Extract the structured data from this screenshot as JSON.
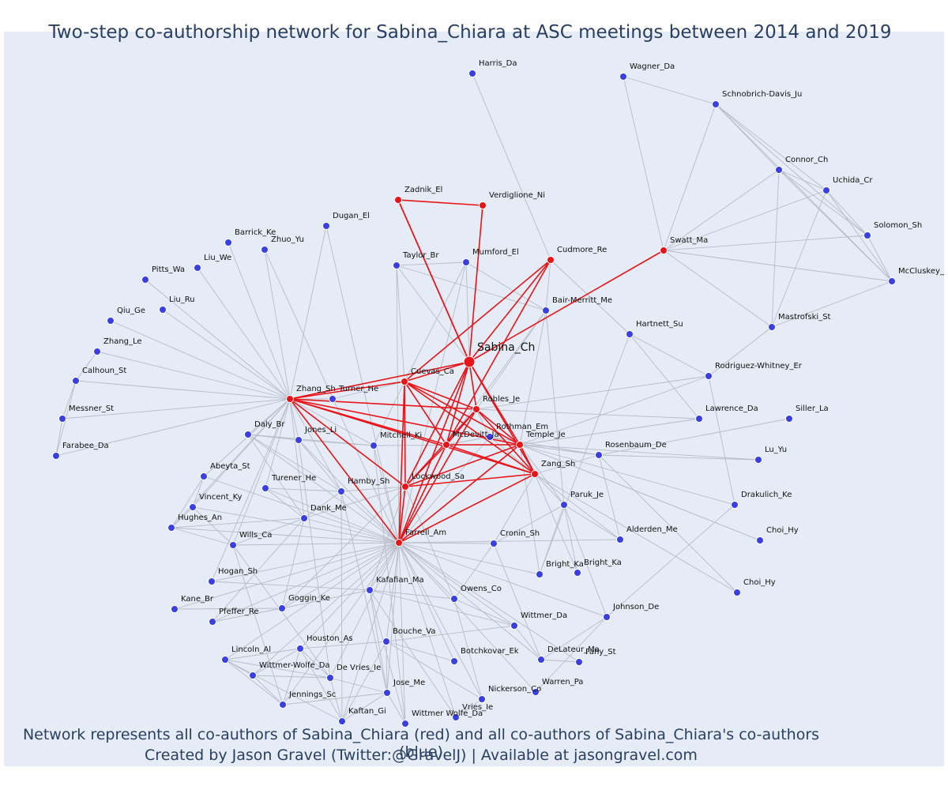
{
  "title": "Two-step co-authorship network for Sabina_Chiara at ASC meetings between 2014 and 2019",
  "footer_line1": "Network represents all co-authors of Sabina_Chiara (red) and all co-authors of Sabina_Chiara's co-authors (blue)",
  "footer_line2": "Created by Jason Gravel (Twitter:@GravelJ) | Available at jasongravel.com",
  "colors": {
    "background": "#e5ecf6",
    "direct": "#e8141a",
    "indirect": "#3a3fe0",
    "edge": "#b7bcc6",
    "red_edge": "#e8141a"
  },
  "nodes": [
    {
      "id": "sabina",
      "label": "Sabina_Ch",
      "group": "ego"
    },
    {
      "id": "zadnik",
      "label": "Zadnik_El",
      "group": "direct"
    },
    {
      "id": "verdiglione",
      "label": "Verdiglione_Ni",
      "group": "direct"
    },
    {
      "id": "cudmore",
      "label": "Cudmore_Re",
      "group": "direct"
    },
    {
      "id": "swatt",
      "label": "Swatt_Ma",
      "group": "direct"
    },
    {
      "id": "cuevas",
      "label": "Cuevas_Ca",
      "group": "direct"
    },
    {
      "id": "zhangsh",
      "label": "Zhang_Sh",
      "group": "direct"
    },
    {
      "id": "robles",
      "label": "Robles_Je",
      "group": "direct"
    },
    {
      "id": "mcdevitt",
      "label": "McDevitt_Ja",
      "group": "direct"
    },
    {
      "id": "temple",
      "label": "Temple_Je",
      "group": "direct"
    },
    {
      "id": "zang",
      "label": "Zang_Sh",
      "group": "direct"
    },
    {
      "id": "lockwood",
      "label": "Lockwood_Sa",
      "group": "direct"
    },
    {
      "id": "farrell",
      "label": "Farrell_Am",
      "group": "direct"
    },
    {
      "id": "harris",
      "label": "Harris_Da",
      "group": "indirect"
    },
    {
      "id": "wagner",
      "label": "Wagner_Da",
      "group": "indirect"
    },
    {
      "id": "schnobrich",
      "label": "Schnobrich-Davis_Ju",
      "group": "indirect"
    },
    {
      "id": "connor",
      "label": "Connor_Ch",
      "group": "indirect"
    },
    {
      "id": "uchida",
      "label": "Uchida_Cr",
      "group": "indirect"
    },
    {
      "id": "solomon",
      "label": "Solomon_Sh",
      "group": "indirect"
    },
    {
      "id": "mccluskey",
      "label": "McCluskey_Jo",
      "group": "indirect"
    },
    {
      "id": "mastrofski",
      "label": "Mastrofski_St",
      "group": "indirect"
    },
    {
      "id": "dugan",
      "label": "Dugan_El",
      "group": "indirect"
    },
    {
      "id": "barrick",
      "label": "Barrick_Ke",
      "group": "indirect"
    },
    {
      "id": "zhuo",
      "label": "Zhuo_Yu",
      "group": "indirect"
    },
    {
      "id": "liuwe",
      "label": "Liu_We",
      "group": "indirect"
    },
    {
      "id": "pitts",
      "label": "Pitts_Wa",
      "group": "indirect"
    },
    {
      "id": "liuru",
      "label": "Liu_Ru",
      "group": "indirect"
    },
    {
      "id": "qiu",
      "label": "Qiu_Ge",
      "group": "indirect"
    },
    {
      "id": "zhangle",
      "label": "Zhang_Le",
      "group": "indirect"
    },
    {
      "id": "calhoun",
      "label": "Calhoun_St",
      "group": "indirect"
    },
    {
      "id": "messner",
      "label": "Messner_St",
      "group": "indirect"
    },
    {
      "id": "farabee",
      "label": "Farabee_Da",
      "group": "indirect"
    },
    {
      "id": "taylor",
      "label": "Taylor_Br",
      "group": "indirect"
    },
    {
      "id": "mumford",
      "label": "Mumford_El",
      "group": "indirect"
    },
    {
      "id": "bairmerritt",
      "label": "Bair-Merritt_Me",
      "group": "indirect"
    },
    {
      "id": "hartnett",
      "label": "Hartnett_Su",
      "group": "indirect"
    },
    {
      "id": "rodriguez",
      "label": "Rodriguez-Whitney_Er",
      "group": "indirect"
    },
    {
      "id": "lawrence",
      "label": "Lawrence_Da",
      "group": "indirect"
    },
    {
      "id": "siller",
      "label": "Siller_La",
      "group": "indirect"
    },
    {
      "id": "turnerhe",
      "label": "Turner_He",
      "group": "indirect"
    },
    {
      "id": "rothman",
      "label": "Rothman_Em",
      "group": "indirect"
    },
    {
      "id": "daly",
      "label": "Daly_Br",
      "group": "indirect"
    },
    {
      "id": "jonesli",
      "label": "Jones_Li",
      "group": "indirect"
    },
    {
      "id": "mitchell",
      "label": "Mitchell_Ki",
      "group": "indirect"
    },
    {
      "id": "rosenbaum",
      "label": "Rosenbaum_De",
      "group": "indirect"
    },
    {
      "id": "luyu",
      "label": "Lu_Yu",
      "group": "indirect"
    },
    {
      "id": "abeyta",
      "label": "Abeyta_St",
      "group": "indirect"
    },
    {
      "id": "turenerhe",
      "label": "Turener_He",
      "group": "indirect"
    },
    {
      "id": "hamby",
      "label": "Hamby_Sh",
      "group": "indirect"
    },
    {
      "id": "paruk",
      "label": "Paruk_Je",
      "group": "indirect"
    },
    {
      "id": "drakulich",
      "label": "Drakulich_Ke",
      "group": "indirect"
    },
    {
      "id": "vincent",
      "label": "Vincent_Ky",
      "group": "indirect"
    },
    {
      "id": "hughes",
      "label": "Hughes_An",
      "group": "indirect"
    },
    {
      "id": "dank",
      "label": "Dank_Me",
      "group": "indirect"
    },
    {
      "id": "wills",
      "label": "Wills_Ca",
      "group": "indirect"
    },
    {
      "id": "cronin",
      "label": "Cronin_Sh",
      "group": "indirect"
    },
    {
      "id": "alderden",
      "label": "Alderden_Me",
      "group": "indirect"
    },
    {
      "id": "choihy1",
      "label": "Choi_Hy",
      "group": "indirect"
    },
    {
      "id": "brightka1",
      "label": "Bright_Ka",
      "group": "indirect"
    },
    {
      "id": "brightka2",
      "label": "Bright_Ka",
      "group": "indirect"
    },
    {
      "id": "hogan",
      "label": "Hogan_Sh",
      "group": "indirect"
    },
    {
      "id": "kafafian",
      "label": "Kafafian_Ma",
      "group": "indirect"
    },
    {
      "id": "choihy2",
      "label": "Choi_Hy",
      "group": "indirect"
    },
    {
      "id": "kane",
      "label": "Kane_Br",
      "group": "indirect"
    },
    {
      "id": "goggin",
      "label": "Goggin_Ke",
      "group": "indirect"
    },
    {
      "id": "owens",
      "label": "Owens_Co",
      "group": "indirect"
    },
    {
      "id": "pfeffer",
      "label": "Pfeffer_Re",
      "group": "indirect"
    },
    {
      "id": "johnson",
      "label": "Johnson_De",
      "group": "indirect"
    },
    {
      "id": "wittmerda",
      "label": "Wittmer_Da",
      "group": "indirect"
    },
    {
      "id": "houston",
      "label": "Houston_As",
      "group": "indirect"
    },
    {
      "id": "bouche",
      "label": "Bouche_Va",
      "group": "indirect"
    },
    {
      "id": "lincoln",
      "label": "Lincoln_Al",
      "group": "indirect"
    },
    {
      "id": "botchkovar",
      "label": "Botchkovar_Ek",
      "group": "indirect"
    },
    {
      "id": "delateur",
      "label": "DeLateur_Ma",
      "group": "indirect"
    },
    {
      "id": "fahy",
      "label": "Fahy_St",
      "group": "indirect"
    },
    {
      "id": "wittmerwolfeda1",
      "label": "Wittmer-Wolfe_Da",
      "group": "indirect"
    },
    {
      "id": "devriesie",
      "label": "De Vries_Ie",
      "group": "indirect"
    },
    {
      "id": "jose",
      "label": "Jose_Me",
      "group": "indirect"
    },
    {
      "id": "warren",
      "label": "Warren_Pa",
      "group": "indirect"
    },
    {
      "id": "jennings",
      "label": "Jennings_Sc",
      "group": "indirect"
    },
    {
      "id": "nickerson",
      "label": "Nickerson_Co",
      "group": "indirect"
    },
    {
      "id": "kaftan",
      "label": "Kaftan_Gi",
      "group": "indirect"
    },
    {
      "id": "vriesie",
      "label": "Vries_Ie",
      "group": "indirect"
    },
    {
      "id": "wittmerwolfe2",
      "label": "Wittmer Wolfe_Da",
      "group": "indirect"
    }
  ]
}
